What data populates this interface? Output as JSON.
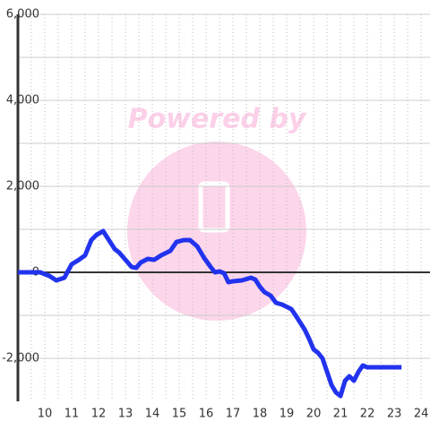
{
  "chart_data": {
    "type": "line",
    "watermark": "Powered by",
    "x": [
      9,
      9.83,
      10.17,
      10.43,
      10.73,
      11,
      11.27,
      11.5,
      11.73,
      11.93,
      12.17,
      12.6,
      12.77,
      13,
      13.23,
      13.4,
      13.57,
      13.83,
      14.07,
      14.33,
      14.67,
      14.9,
      15.17,
      15.4,
      15.67,
      15.93,
      16.17,
      16.33,
      16.5,
      16.67,
      16.83,
      17,
      17.33,
      17.67,
      17.83,
      18,
      18.17,
      18.4,
      18.6,
      18.83,
      19.17,
      19.33,
      19.5,
      19.67,
      19.83,
      20,
      20.17,
      20.33,
      20.5,
      20.67,
      20.83,
      21,
      21.17,
      21.33,
      21.5,
      21.67,
      21.83,
      22,
      22.17,
      23.27
    ],
    "series": [
      {
        "color": "#2233ee",
        "values": [
          0,
          0,
          -83,
          -188,
          -125,
          188,
          292,
          396,
          750,
          875,
          958,
          542,
          458,
          292,
          125,
          104,
          229,
          313,
          292,
          396,
          500,
          708,
          750,
          750,
          604,
          333,
          125,
          0,
          21,
          -21,
          -229,
          -208,
          -188,
          -125,
          -167,
          -333,
          -458,
          -542,
          -708,
          -750,
          -854,
          -1000,
          -1167,
          -1333,
          -1542,
          -1792,
          -1875,
          -2000,
          -2313,
          -2625,
          -2792,
          -2875,
          -2521,
          -2417,
          -2521,
          -2313,
          -2167,
          -2208,
          -2208,
          -2208
        ]
      }
    ],
    "xlim": [
      9,
      24.33
    ],
    "ylim": [
      -3000,
      6000
    ],
    "xticks": [
      10,
      11,
      12,
      13,
      14,
      15,
      16,
      17,
      18,
      19,
      20,
      21,
      22,
      23,
      24
    ],
    "x_minor_ticks": [
      9.5,
      10.5,
      11.5,
      12.5,
      13.5,
      14.5,
      15.5,
      16.5,
      17.5,
      18.5,
      19.5,
      20.5,
      21.5,
      22.5,
      23.5
    ],
    "yticks": [
      {
        "value": -2000,
        "label": "-2,000"
      },
      0,
      {
        "value": 2000,
        "label": "2,000"
      },
      {
        "value": 4000,
        "label": "4,000"
      },
      {
        "value": 6000,
        "label": "6,000"
      }
    ],
    "y_minor_ticks": [
      -1000,
      1000,
      3000,
      5000
    ],
    "grid": true
  }
}
